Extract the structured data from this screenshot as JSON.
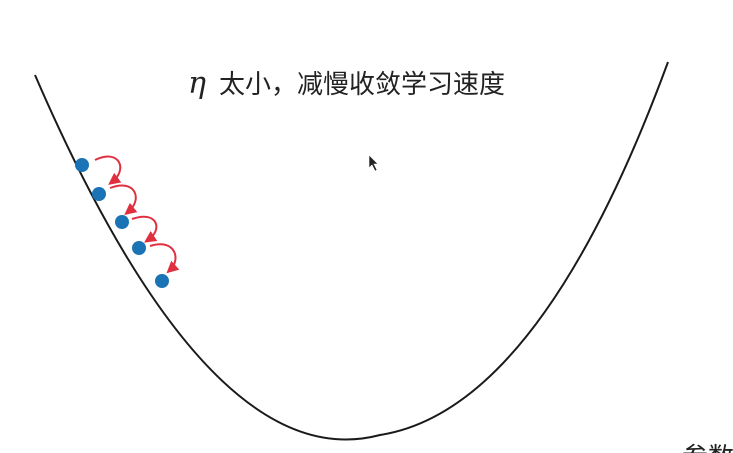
{
  "diagram": {
    "title_symbol": "η",
    "title_text": "太小，减慢收敛学习速度",
    "corner_label": "参数"
  },
  "colors": {
    "curve": "#1a1a1a",
    "point": "#1a73b5",
    "arrow": "#e03040",
    "text": "#222222",
    "cursor": "#222222"
  }
}
